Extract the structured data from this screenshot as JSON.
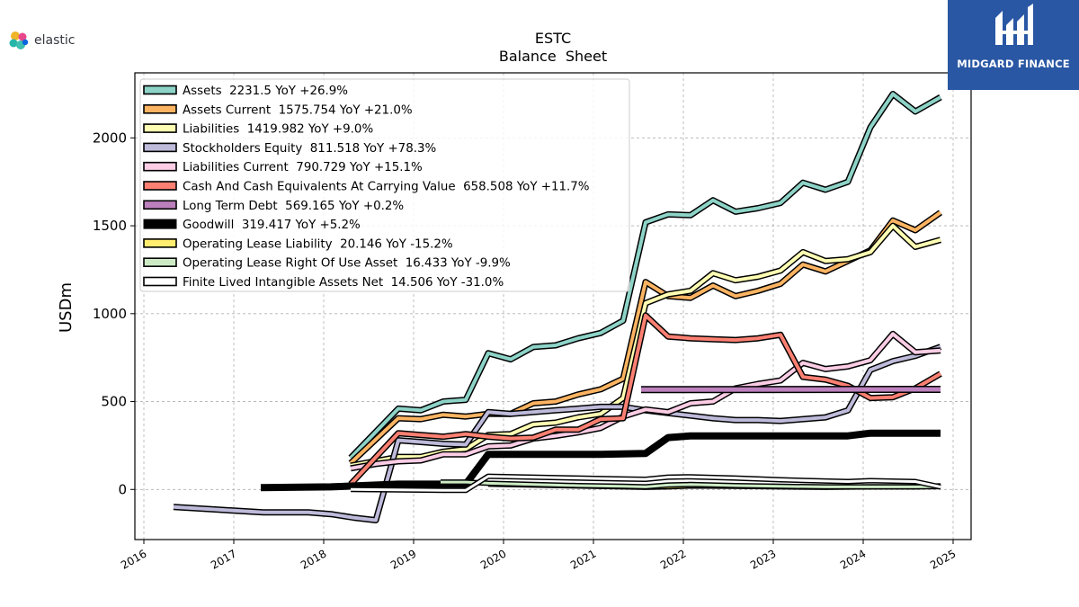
{
  "branding": {
    "left_logo_text": "elastic",
    "right_logo_text": "MIDGARD FINANCE",
    "right_logo_color": "#2957a4"
  },
  "chart_data": {
    "type": "line",
    "title": "ESTC",
    "subtitle": "Balance  Sheet",
    "ylabel": "USDm",
    "xlabel": "",
    "xlim": [
      2015.9,
      2025.2
    ],
    "ylim": [
      -285,
      2370
    ],
    "yticks": [
      0,
      500,
      1000,
      1500,
      2000
    ],
    "xticks": [
      "2016",
      "2017",
      "2018",
      "2019",
      "2020",
      "2021",
      "2022",
      "2023",
      "2024",
      "2025"
    ],
    "grid": true,
    "legend_position": "top-left",
    "series": [
      {
        "name": "Assets",
        "legend": "Assets  2231.5 YoY +26.9%",
        "color": "#8dd3c7",
        "width": 4,
        "x": [
          2018.3,
          2018.83,
          2019.08,
          2019.33,
          2019.58,
          2019.83,
          2020.08,
          2020.33,
          2020.58,
          2020.83,
          2021.08,
          2021.33,
          2021.58,
          2021.83,
          2022.08,
          2022.33,
          2022.58,
          2022.83,
          2023.08,
          2023.33,
          2023.58,
          2023.83,
          2024.08,
          2024.33,
          2024.58,
          2024.86
        ],
        "y": [
          180,
          460,
          450,
          500,
          510,
          775,
          740,
          810,
          820,
          860,
          890,
          960,
          1520,
          1565,
          1560,
          1645,
          1580,
          1600,
          1630,
          1745,
          1705,
          1750,
          2060,
          2250,
          2150,
          2231.5
        ]
      },
      {
        "name": "Assets Current",
        "legend": "Assets Current  1575.754 YoY +21.0%",
        "color": "#fdb462",
        "width": 4,
        "x": [
          2018.3,
          2018.83,
          2019.08,
          2019.33,
          2019.58,
          2019.83,
          2020.08,
          2020.33,
          2020.58,
          2020.83,
          2021.08,
          2021.33,
          2021.58,
          2021.83,
          2022.08,
          2022.33,
          2022.58,
          2022.83,
          2023.08,
          2023.33,
          2023.58,
          2023.83,
          2024.08,
          2024.33,
          2024.58,
          2024.86
        ],
        "y": [
          150,
          405,
          400,
          425,
          415,
          430,
          430,
          490,
          500,
          540,
          570,
          630,
          1180,
          1100,
          1090,
          1160,
          1100,
          1130,
          1170,
          1280,
          1240,
          1300,
          1360,
          1530,
          1475,
          1575.754
        ]
      },
      {
        "name": "Liabilities",
        "legend": "Liabilities  1419.982 YoY +9.0%",
        "color": "#ffffb3",
        "width": 4,
        "x": [
          2018.3,
          2018.83,
          2019.08,
          2019.33,
          2019.58,
          2019.83,
          2020.08,
          2020.33,
          2020.58,
          2020.83,
          2021.08,
          2021.33,
          2021.58,
          2021.83,
          2022.08,
          2022.33,
          2022.58,
          2022.83,
          2023.08,
          2023.33,
          2023.58,
          2023.83,
          2024.08,
          2024.33,
          2024.58,
          2024.86
        ],
        "y": [
          135,
          185,
          185,
          215,
          230,
          310,
          315,
          370,
          380,
          410,
          430,
          520,
          1060,
          1110,
          1130,
          1230,
          1190,
          1210,
          1245,
          1350,
          1300,
          1310,
          1350,
          1500,
          1380,
          1419.982
        ]
      },
      {
        "name": "Stockholders Equity",
        "legend": "Stockholders Equity  811.518 YoY +78.3%",
        "color": "#bebada",
        "width": 4,
        "x": [
          2016.33,
          2016.83,
          2017.33,
          2017.83,
          2018.08,
          2018.33,
          2018.58,
          2018.83,
          2019.08,
          2019.33,
          2019.58,
          2019.83,
          2020.08,
          2020.33,
          2020.58,
          2020.83,
          2021.08,
          2021.33,
          2021.58,
          2021.83,
          2022.08,
          2022.33,
          2022.58,
          2022.83,
          2023.08,
          2023.33,
          2023.58,
          2023.83,
          2024.08,
          2024.33,
          2024.58,
          2024.86
        ],
        "y": [
          -100,
          -115,
          -130,
          -130,
          -140,
          -160,
          -175,
          280,
          270,
          260,
          255,
          440,
          430,
          440,
          450,
          460,
          470,
          470,
          450,
          435,
          420,
          405,
          395,
          395,
          390,
          400,
          410,
          450,
          680,
          730,
          760,
          811.518
        ]
      },
      {
        "name": "Liabilities Current",
        "legend": "Liabilities Current  790.729 YoY +15.1%",
        "color": "#fccde5",
        "width": 4,
        "x": [
          2018.3,
          2018.58,
          2018.83,
          2019.08,
          2019.33,
          2019.58,
          2019.83,
          2020.08,
          2020.33,
          2020.58,
          2020.83,
          2021.08,
          2021.33,
          2021.58,
          2021.83,
          2022.08,
          2022.33,
          2022.58,
          2022.83,
          2023.08,
          2023.33,
          2023.58,
          2023.83,
          2024.08,
          2024.33,
          2024.58,
          2024.86
        ],
        "y": [
          120,
          145,
          160,
          165,
          200,
          200,
          245,
          250,
          290,
          305,
          325,
          350,
          415,
          455,
          440,
          490,
          500,
          575,
          600,
          620,
          720,
          685,
          700,
          735,
          885,
          780,
          790.729
        ]
      },
      {
        "name": "Cash And Cash Equivalents At Carrying Value",
        "legend": "Cash And Cash Equivalents At Carrying Value  658.508 YoY +11.7%",
        "color": "#fb8072",
        "width": 4,
        "x": [
          2018.3,
          2018.83,
          2019.08,
          2019.33,
          2019.58,
          2019.83,
          2020.08,
          2020.33,
          2020.58,
          2020.83,
          2021.08,
          2021.33,
          2021.58,
          2021.83,
          2022.08,
          2022.33,
          2022.58,
          2022.83,
          2023.08,
          2023.33,
          2023.58,
          2023.83,
          2024.08,
          2024.33,
          2024.58,
          2024.86
        ],
        "y": [
          30,
          320,
          310,
          300,
          315,
          300,
          290,
          295,
          340,
          340,
          400,
          405,
          990,
          870,
          860,
          855,
          850,
          860,
          880,
          640,
          625,
          590,
          520,
          525,
          575,
          658.508
        ]
      },
      {
        "name": "Long Term Debt",
        "legend": "Long Term Debt  569.165 YoY +0.2%",
        "color": "#bc80bd",
        "width": 5,
        "x": [
          2021.53,
          2024.86
        ],
        "y": [
          568,
          569.165
        ]
      },
      {
        "name": "Goodwill",
        "legend": "Goodwill  319.417 YoY +5.2%",
        "color": "#000000",
        "width": 8,
        "x": [
          2017.3,
          2018.08,
          2018.83,
          2019.08,
          2019.58,
          2019.83,
          2020.08,
          2020.58,
          2021.08,
          2021.58,
          2021.83,
          2022.08,
          2022.58,
          2023.08,
          2023.58,
          2023.83,
          2024.08,
          2024.58,
          2024.86
        ],
        "y": [
          10,
          15,
          30,
          30,
          30,
          200,
          200,
          200,
          200,
          205,
          295,
          305,
          305,
          305,
          305,
          305,
          320,
          320,
          319.417
        ]
      },
      {
        "name": "Operating Lease Liability",
        "legend": "Operating Lease Liability  20.146 YoY -15.2%",
        "color": "#ffed6f",
        "width": 3,
        "x": [
          2019.83,
          2020.33,
          2020.83,
          2021.33,
          2021.58,
          2021.83,
          2022.08,
          2022.58,
          2023.08,
          2023.58,
          2024.08,
          2024.58,
          2024.86
        ],
        "y": [
          30,
          25,
          20,
          15,
          12,
          15,
          20,
          18,
          15,
          12,
          15,
          15,
          20.146
        ]
      },
      {
        "name": "Operating Lease Right Of Use Asset",
        "legend": "Operating Lease Right Of Use Asset  16.433 YoY -9.9%",
        "color": "#ccebc5",
        "width": 3,
        "x": [
          2019.3,
          2019.58,
          2019.83,
          2020.33,
          2020.83,
          2021.33,
          2021.58,
          2021.83,
          2022.08,
          2022.58,
          2023.08,
          2023.58,
          2024.08,
          2024.58,
          2024.86
        ],
        "y": [
          42,
          42,
          35,
          28,
          22,
          18,
          15,
          25,
          28,
          22,
          18,
          15,
          15,
          15,
          16.433
        ]
      },
      {
        "name": "Finite Lived Intangible Assets Net",
        "legend": "Finite Lived Intangible Assets Net  14.506 YoY -31.0%",
        "color": "#ffffff",
        "width": 3,
        "x": [
          2018.3,
          2018.83,
          2019.33,
          2019.58,
          2019.83,
          2020.33,
          2020.83,
          2021.33,
          2021.58,
          2021.83,
          2022.08,
          2022.58,
          2023.08,
          2023.58,
          2023.83,
          2024.08,
          2024.58,
          2024.86
        ],
        "y": [
          0,
          -2,
          -5,
          -5,
          75,
          70,
          65,
          60,
          58,
          70,
          72,
          65,
          55,
          48,
          45,
          50,
          45,
          14.506
        ]
      }
    ]
  }
}
